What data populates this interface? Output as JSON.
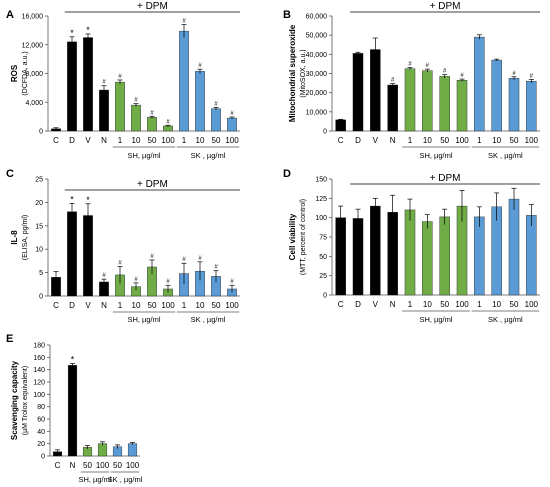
{
  "colors": {
    "control": "#000000",
    "sh": "#70ad47",
    "sk": "#5b9bd5",
    "axis": "#555555"
  },
  "chart_data": [
    {
      "panel": "A",
      "type": "bar",
      "ylabel": "ROS",
      "ylabel2": "(DCFDA, a.u.)",
      "ylim": [
        0,
        16000
      ],
      "yticks": [
        "0",
        "4,000",
        "8,000",
        "12,000",
        "16,000"
      ],
      "categories": [
        "C",
        "D",
        "V",
        "N",
        "1",
        "10",
        "50",
        "100",
        "1",
        "10",
        "50",
        "100"
      ],
      "groups": [
        "control",
        "control",
        "control",
        "control",
        "sh",
        "sh",
        "sh",
        "sh",
        "sk",
        "sk",
        "sk",
        "sk"
      ],
      "values": [
        300,
        12400,
        13000,
        5700,
        6800,
        3600,
        1900,
        700,
        13900,
        8300,
        3100,
        1800
      ],
      "errors": [
        150,
        700,
        500,
        600,
        300,
        200,
        150,
        100,
        900,
        300,
        200,
        150
      ],
      "marks": [
        "",
        "*",
        "*",
        "#",
        "#",
        "#",
        "#",
        "#",
        "#",
        "#",
        "#",
        "#"
      ],
      "dpm_label": "+ DPM",
      "group_labels": [
        "SH, µg/ml",
        "SK , µg/ml"
      ]
    },
    {
      "panel": "B",
      "type": "bar",
      "ylabel": "Mitochondrial superoxide",
      "ylabel2": "(MitoSOX, a.u.)",
      "ylim": [
        0,
        60000
      ],
      "yticks": [
        "0",
        "10,000",
        "20,000",
        "30,000",
        "40,000",
        "50,000",
        "60,000"
      ],
      "categories": [
        "C",
        "D",
        "V",
        "N",
        "1",
        "10",
        "50",
        "100",
        "1",
        "10",
        "50",
        "100"
      ],
      "groups": [
        "control",
        "control",
        "control",
        "control",
        "sh",
        "sh",
        "sh",
        "sh",
        "sk",
        "sk",
        "sk",
        "sk"
      ],
      "values": [
        5800,
        40500,
        42500,
        24000,
        32500,
        31500,
        28500,
        26500,
        49000,
        37000,
        27500,
        26000
      ],
      "errors": [
        300,
        600,
        6000,
        700,
        600,
        800,
        900,
        600,
        1200,
        500,
        800,
        900
      ],
      "marks": [
        "",
        "",
        "",
        "#",
        "#",
        "#",
        "#",
        "#",
        "",
        "",
        "#",
        "#"
      ],
      "dpm_label": "+ DPM",
      "group_labels": [
        "SH, µg/ml",
        "SK , µg/ml"
      ]
    },
    {
      "panel": "C",
      "type": "bar",
      "ylabel": "IL-8",
      "ylabel2": "(ELISA, pg/ml)",
      "ylim": [
        0,
        25
      ],
      "yticks": [
        "0",
        "5",
        "10",
        "15",
        "20",
        "25"
      ],
      "categories": [
        "C",
        "D",
        "V",
        "N",
        "1",
        "10",
        "50",
        "100",
        "1",
        "10",
        "50",
        "100"
      ],
      "groups": [
        "control",
        "control",
        "control",
        "control",
        "sh",
        "sh",
        "sh",
        "sh",
        "sk",
        "sk",
        "sk",
        "sk"
      ],
      "values": [
        4,
        18,
        17.2,
        3,
        4.5,
        2,
        6.2,
        1.5,
        4.8,
        5.3,
        4.2,
        1.5
      ],
      "errors": [
        1.2,
        1.8,
        2.5,
        0.6,
        1.8,
        0.8,
        1.5,
        0.8,
        2.2,
        2.0,
        1.2,
        0.8
      ],
      "marks": [
        "",
        "*",
        "*",
        "#",
        "#",
        "#",
        "#",
        "#",
        "#",
        "#",
        "#",
        "#"
      ],
      "dpm_label": "+ DPM",
      "group_labels": [
        "SH, µg/ml",
        "SK , µg/ml"
      ]
    },
    {
      "panel": "D",
      "type": "bar",
      "ylabel": "Cell viability",
      "ylabel2": "(MTT, percent of control)",
      "ylim": [
        0,
        150
      ],
      "yticks": [
        "0",
        "25",
        "50",
        "75",
        "100",
        "125",
        "150"
      ],
      "categories": [
        "C",
        "D",
        "V",
        "N",
        "1",
        "10",
        "50",
        "100",
        "1",
        "10",
        "50",
        "100"
      ],
      "groups": [
        "control",
        "control",
        "control",
        "control",
        "sh",
        "sh",
        "sh",
        "sh",
        "sk",
        "sk",
        "sk",
        "sk"
      ],
      "values": [
        100,
        99,
        115,
        107,
        110,
        95,
        101,
        115,
        101,
        114,
        124,
        103
      ],
      "errors": [
        15,
        12,
        10,
        22,
        14,
        9,
        10,
        20,
        13,
        18,
        14,
        14
      ],
      "marks": [
        "",
        "",
        "",
        "",
        "",
        "",
        "",
        "",
        "",
        "",
        "",
        ""
      ],
      "dpm_label": "+ DPM",
      "group_labels": [
        "SH, µg/ml",
        "SK , µg/ml"
      ]
    },
    {
      "panel": "E",
      "type": "bar",
      "ylabel": "Scavenging capacity",
      "ylabel2": "(µM Trolox equivalent)",
      "ylim": [
        0,
        180
      ],
      "yticks": [
        "0",
        "20",
        "40",
        "60",
        "80",
        "100",
        "120",
        "140",
        "160",
        "180"
      ],
      "categories": [
        "C",
        "N",
        "50",
        "100",
        "50",
        "100"
      ],
      "groups": [
        "control",
        "control",
        "sh",
        "sh",
        "sk",
        "sk"
      ],
      "values": [
        7,
        147,
        14,
        20,
        15,
        20
      ],
      "errors": [
        3,
        3,
        3,
        3,
        3,
        2
      ],
      "marks": [
        "",
        "*",
        "",
        "",
        "",
        ""
      ],
      "dpm_label": "",
      "group_labels": [
        "SH, µg/ml",
        "SK , µg/ml"
      ]
    }
  ]
}
